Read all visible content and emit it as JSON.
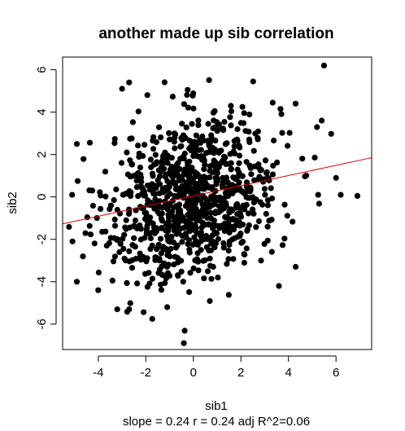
{
  "chart_data": {
    "type": "scatter",
    "title": "another made up sib correlation",
    "xlabel": "sib1",
    "ylabel": "sib2",
    "subtitle": "slope = 0.24 r = 0.24 adj R^2=0.06",
    "xlim": [
      -5.5,
      7.5
    ],
    "ylim": [
      -7.2,
      6.6
    ],
    "x_ticks": [
      -4,
      -2,
      0,
      2,
      4,
      6
    ],
    "y_ticks": [
      -6,
      -4,
      -2,
      0,
      2,
      4,
      6
    ],
    "x_tick_labels": [
      "-4",
      "-2",
      "0",
      "2",
      "4",
      "6"
    ],
    "y_tick_labels": [
      "-6",
      "-4",
      "-2",
      "0",
      "2",
      "4",
      "6"
    ],
    "point_color": "#000000",
    "fit_line": {
      "slope": 0.24,
      "intercept": 0.05,
      "color": "#e00000"
    },
    "n_points": 1000,
    "x_mean": 0.0,
    "x_sd": 1.8,
    "y_mean": 0.0,
    "y_sd": 1.95,
    "correlation": 0.24,
    "notable_points": [
      {
        "x": 5.5,
        "y": 6.2
      },
      {
        "x": -0.4,
        "y": -6.9
      },
      {
        "x": 6.9,
        "y": 0.05
      },
      {
        "x": 6.2,
        "y": 0.1
      },
      {
        "x": -5.1,
        "y": 0.1
      },
      {
        "x": -4.9,
        "y": 2.5
      },
      {
        "x": -4.9,
        "y": -4.0
      },
      {
        "x": -2.7,
        "y": 5.4
      },
      {
        "x": -3.0,
        "y": 5.1
      },
      {
        "x": 4.3,
        "y": 4.4
      },
      {
        "x": 5.4,
        "y": 3.6
      },
      {
        "x": 3.6,
        "y": -4.2
      },
      {
        "x": -3.2,
        "y": -5.3
      },
      {
        "x": -2.7,
        "y": -5.3
      },
      {
        "x": -1.1,
        "y": -5.2
      },
      {
        "x": -4.0,
        "y": -4.4
      },
      {
        "x": 4.3,
        "y": -3.3
      },
      {
        "x": 6.0,
        "y": 0.9
      }
    ]
  }
}
